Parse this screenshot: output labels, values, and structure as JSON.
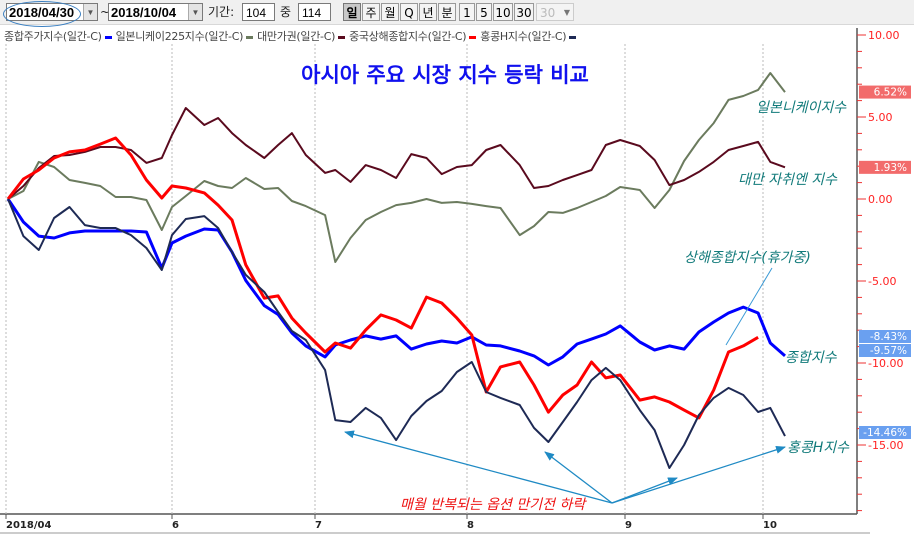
{
  "toolbar": {
    "start_date": "2018/04/30",
    "separator": "~",
    "end_date": "2018/10/04",
    "period_label": "기간:",
    "period_value": "104",
    "of_label": "중",
    "total_value": "114",
    "interval_buttons": [
      {
        "label": "일",
        "active": true
      },
      {
        "label": "주"
      },
      {
        "label": "월"
      },
      {
        "label": "Q"
      },
      {
        "label": "년"
      },
      {
        "label": "분"
      }
    ],
    "number_buttons": [
      "1",
      "5",
      "10",
      "30"
    ],
    "number_select": "30"
  },
  "legend": [
    {
      "label": "종합주가지수(일간-C)",
      "color": "#0000ff"
    },
    {
      "label": "일본니케이225지수(일간-C)",
      "color": "#6b7b5e"
    },
    {
      "label": "대만가권(일간-C)",
      "color": "#5a0a1e"
    },
    {
      "label": "중국상해종합지수(일간-C)",
      "color": "#ff0000"
    },
    {
      "label": "홍콩H지수(일간-C)",
      "color": "#1e2a55"
    }
  ],
  "annotations": {
    "title": "아시아 주요 시장 지수 등락 비교",
    "nikkei": "일본니케이지수",
    "taiwan": "대만 자취엔 지수",
    "shanghai": "상해종합지수(휴가중)",
    "kospi": "종합지수",
    "hscei": "홍콩H지수",
    "expiry_note": "매월 반복되는 옵션 만기전 하락"
  },
  "badges": [
    {
      "text": "6.52%",
      "value": 6.52,
      "color": "#f26b6b"
    },
    {
      "text": "1.93%",
      "value": 1.93,
      "color": "#f26b6b"
    },
    {
      "text": "-8.43%",
      "value": -8.43,
      "color": "#6aa0f0"
    },
    {
      "text": "-9.57%",
      "value": -9.57,
      "color": "#6aa0f0"
    },
    {
      "text": "-14.46%",
      "value": -14.46,
      "color": "#6aa0f0"
    }
  ],
  "chart_data": {
    "type": "line",
    "title": "아시아 주요 시장 지수 등락 비교",
    "y_unit": "%",
    "ylim": [
      -19,
      10.5
    ],
    "y_ticks": [
      "10.00",
      "5.00",
      "0.00",
      "-5.00",
      "-10.00",
      "-15.00"
    ],
    "y_tick_values": [
      10,
      5,
      0,
      -5,
      -10,
      -15
    ],
    "y_axis_position": "right",
    "x_tick_labels": [
      "2018/04",
      "6",
      "7",
      "8",
      "9",
      "10"
    ],
    "x_tick_dates": [
      "2018-04-30",
      "2018-06-01",
      "2018-07-02",
      "2018-08-01",
      "2018-09-03",
      "2018-10-01"
    ],
    "grid": "vertical dotted at months",
    "dates": [
      "2018-04-30",
      "2018-05-03",
      "2018-05-06",
      "2018-05-09",
      "2018-05-12",
      "2018-05-15",
      "2018-05-18",
      "2018-05-21",
      "2018-05-24",
      "2018-05-27",
      "2018-05-30",
      "2018-06-01",
      "2018-06-04",
      "2018-06-08",
      "2018-06-11",
      "2018-06-14",
      "2018-06-17",
      "2018-06-21",
      "2018-06-24",
      "2018-06-27",
      "2018-06-30",
      "2018-07-04",
      "2018-07-06",
      "2018-07-09",
      "2018-07-12",
      "2018-07-15",
      "2018-07-18",
      "2018-07-21",
      "2018-07-24",
      "2018-07-27",
      "2018-07-30",
      "2018-08-02",
      "2018-08-05",
      "2018-08-08",
      "2018-08-12",
      "2018-08-15",
      "2018-08-18",
      "2018-08-21",
      "2018-08-24",
      "2018-08-27",
      "2018-08-30",
      "2018-09-02",
      "2018-09-06",
      "2018-09-09",
      "2018-09-12",
      "2018-09-15",
      "2018-09-18",
      "2018-09-21",
      "2018-09-24",
      "2018-09-27",
      "2018-09-30",
      "2018-10-02",
      "2018-10-04"
    ],
    "series": [
      {
        "name": "종합주가지수(일간-C)",
        "color": "#0000ff",
        "width": 3,
        "values": [
          0,
          -1.4,
          -2.26,
          -2.38,
          -2.07,
          -1.95,
          -1.95,
          -1.95,
          -1.95,
          -2.01,
          -4.21,
          -2.68,
          -2.26,
          -1.83,
          -1.89,
          -3.23,
          -4.97,
          -6.5,
          -7.04,
          -8.17,
          -8.96,
          -9.63,
          -8.9,
          -8.6,
          -8.35,
          -8.54,
          -8.35,
          -9.15,
          -8.84,
          -8.66,
          -8.78,
          -8.41,
          -8.9,
          -8.96,
          -9.27,
          -9.57,
          -10.12,
          -9.63,
          -8.84,
          -8.54,
          -8.23,
          -7.74,
          -8.72,
          -9.21,
          -8.96,
          -9.15,
          -8.11,
          -7.5,
          -6.95,
          -6.59,
          -6.95,
          -8.78,
          -9.57
        ]
      },
      {
        "name": "일본니케이225지수(일간-C)",
        "color": "#6b7b5e",
        "width": 2,
        "values": [
          0,
          0.49,
          2.26,
          1.95,
          1.16,
          0.98,
          0.79,
          0.12,
          0.12,
          -0.06,
          -1.89,
          -0.49,
          0.18,
          1.1,
          0.79,
          0.67,
          1.28,
          0.61,
          0.67,
          -0.12,
          -0.43,
          -0.98,
          -3.84,
          -2.38,
          -1.28,
          -0.79,
          -0.37,
          -0.24,
          0,
          -0.24,
          -0.18,
          -0.3,
          -0.43,
          -0.55,
          -2.2,
          -1.65,
          -0.79,
          -0.85,
          -0.55,
          -0.18,
          0.18,
          0.73,
          0.55,
          -0.55,
          0.55,
          2.32,
          3.6,
          4.63,
          6.04,
          6.28,
          6.65,
          7.68,
          6.52
        ]
      },
      {
        "name": "대만가권(일간-C)",
        "color": "#5a0a1e",
        "width": 2,
        "values": [
          0,
          0.79,
          1.89,
          2.62,
          2.68,
          2.87,
          3.17,
          3.17,
          2.99,
          2.2,
          2.5,
          3.9,
          5.55,
          4.51,
          4.94,
          4.02,
          3.29,
          2.5,
          3.29,
          4.02,
          2.68,
          1.59,
          1.77,
          1.04,
          2.07,
          1.77,
          1.28,
          2.74,
          2.5,
          1.52,
          1.95,
          2.07,
          2.99,
          3.29,
          2.07,
          0.67,
          0.79,
          1.16,
          1.46,
          1.77,
          3.29,
          3.6,
          3.23,
          2.38,
          0.85,
          1.16,
          1.65,
          2.26,
          2.99,
          3.23,
          3.48,
          2.26,
          1.93
        ]
      },
      {
        "name": "중국상해종합지수(일간-C)",
        "color": "#ff0000",
        "width": 3,
        "values": [
          0,
          1.22,
          1.77,
          2.5,
          2.87,
          2.99,
          3.35,
          3.72,
          2.68,
          1.16,
          0.06,
          0.79,
          0.67,
          0.37,
          -0.37,
          -1.28,
          -4.02,
          -6.04,
          -5.91,
          -7.26,
          -8.17,
          -9.33,
          -8.78,
          -9.09,
          -7.99,
          -7.07,
          -7.38,
          -7.87,
          -5.98,
          -6.34,
          -7.26,
          -8.29,
          -11.77,
          -10.24,
          -9.94,
          -11.34,
          -13.0,
          -11.95,
          -11.34,
          -9.94,
          -10.91,
          -10.73,
          -12.26,
          -12.07,
          -12.38,
          -12.87,
          -13.35,
          -11.65,
          -9.33,
          -8.96,
          -8.43,
          null,
          null
        ]
      },
      {
        "name": "홍콩H지수(일간-C)",
        "color": "#1e2a55",
        "width": 2,
        "values": [
          0,
          -2.26,
          -3.11,
          -1.16,
          -0.49,
          -1.59,
          -1.77,
          -1.77,
          -2.2,
          -2.99,
          -4.33,
          -2.2,
          -1.22,
          -1.04,
          -1.77,
          -3.23,
          -4.63,
          -5.67,
          -6.89,
          -8.05,
          -8.6,
          -10.43,
          -13.48,
          -13.6,
          -12.74,
          -13.35,
          -14.7,
          -13.23,
          -12.32,
          -11.71,
          -10.55,
          -9.94,
          -11.77,
          -12.13,
          -12.56,
          -13.96,
          -14.82,
          -13.6,
          -12.38,
          -11.04,
          -10.3,
          -11.04,
          -12.87,
          -14.09,
          -16.4,
          -15.0,
          -13.17,
          -12.13,
          -11.52,
          -11.95,
          -12.99,
          -12.74,
          -14.46
        ]
      }
    ]
  }
}
